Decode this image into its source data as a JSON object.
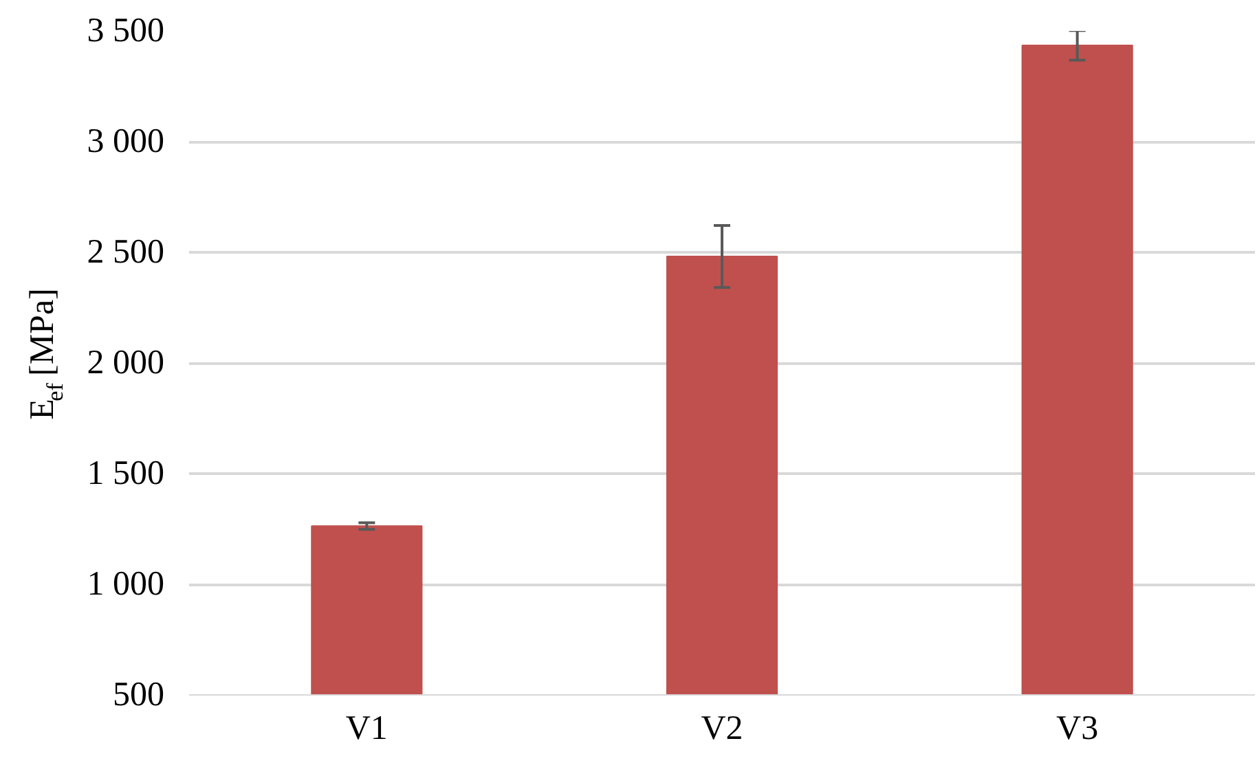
{
  "chart_data": {
    "type": "bar",
    "ylabel": "E$_{ef}$ [MPa]",
    "categories": [
      "V1",
      "V2",
      "V3"
    ],
    "values": [
      1263,
      2481,
      3435
    ],
    "errors": [
      15,
      140,
      67
    ],
    "color": "#c0504d",
    "ylim": [
      500,
      3500
    ],
    "yticks": [
      500,
      {
        "value": 1000,
        "label": "1 000"
      },
      {
        "value": 1500,
        "label": "1 500"
      },
      {
        "value": 2000,
        "label": "2 000"
      },
      {
        "value": 2500,
        "label": "2 500"
      },
      {
        "value": 3000,
        "label": "3 000"
      },
      {
        "value": 3500,
        "label": "3 500"
      }
    ],
    "grid": "y",
    "legend": false
  }
}
